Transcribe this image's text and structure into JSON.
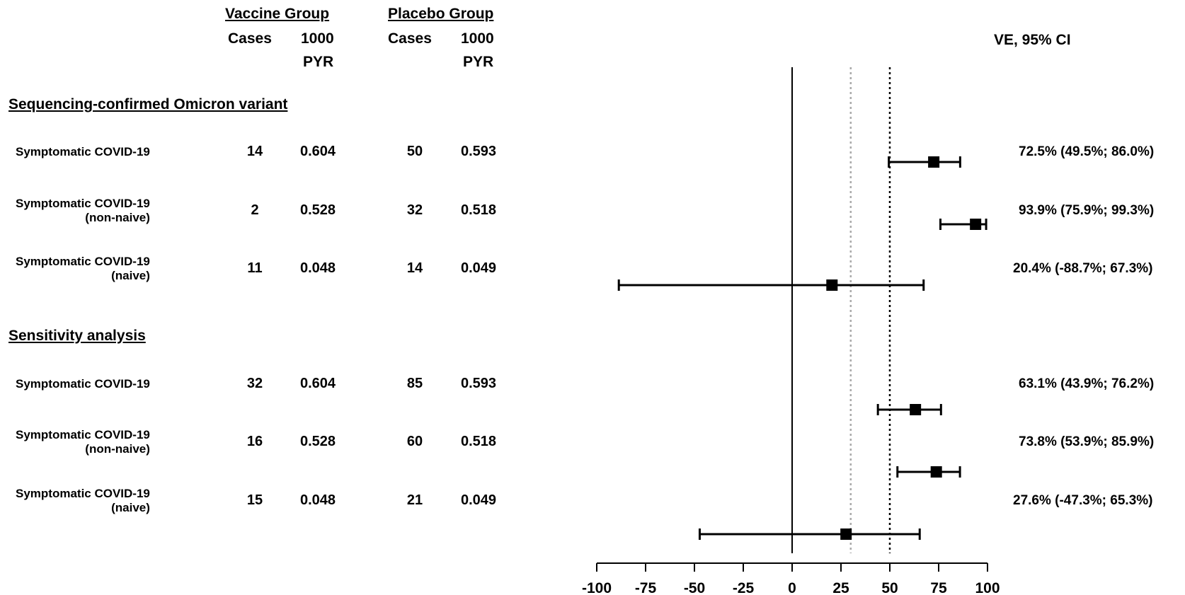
{
  "header": {
    "vaccine_group": "Vaccine Group",
    "placebo_group": "Placebo Group",
    "cases": "Cases",
    "pyr_line1": "1000",
    "pyr_line2": "PYR",
    "ve_ci": "VE, 95% CI"
  },
  "sections": [
    {
      "title": "Sequencing-confirmed Omicron variant",
      "rows": [
        {
          "label": "Symptomatic COVID-19",
          "sublabel": "",
          "vaccine_cases": "14",
          "vaccine_pyr": "0.604",
          "placebo_cases": "50",
          "placebo_pyr": "0.593",
          "ve_text": "72.5% (49.5%; 86.0%)"
        },
        {
          "label": "Symptomatic COVID-19",
          "sublabel": "(non-naive)",
          "vaccine_cases": "2",
          "vaccine_pyr": "0.528",
          "placebo_cases": "32",
          "placebo_pyr": "0.518",
          "ve_text": "93.9% (75.9%; 99.3%)"
        },
        {
          "label": "Symptomatic COVID-19",
          "sublabel": "(naive)",
          "vaccine_cases": "11",
          "vaccine_pyr": "0.048",
          "placebo_cases": "14",
          "placebo_pyr": "0.049",
          "ve_text": "20.4% (-88.7%; 67.3%)"
        }
      ]
    },
    {
      "title": "Sensitivity analysis",
      "rows": [
        {
          "label": "Symptomatic COVID-19",
          "sublabel": "",
          "vaccine_cases": "32",
          "vaccine_pyr": "0.604",
          "placebo_cases": "85",
          "placebo_pyr": "0.593",
          "ve_text": "63.1% (43.9%; 76.2%)"
        },
        {
          "label": "Symptomatic COVID-19",
          "sublabel": "(non-naive)",
          "vaccine_cases": "16",
          "vaccine_pyr": "0.528",
          "placebo_cases": "60",
          "placebo_pyr": "0.518",
          "ve_text": "73.8% (53.9%; 85.9%)"
        },
        {
          "label": "Symptomatic COVID-19",
          "sublabel": "(naive)",
          "vaccine_cases": "15",
          "vaccine_pyr": "0.048",
          "placebo_cases": "21",
          "placebo_pyr": "0.049",
          "ve_text": "27.6% (-47.3%; 65.3%)"
        }
      ]
    }
  ],
  "chart_data": {
    "type": "forest",
    "title": "",
    "xlabel": "",
    "ylabel": "",
    "xlim": [
      -100,
      100
    ],
    "xticks": [
      -100,
      -75,
      -50,
      -25,
      0,
      25,
      50,
      75,
      100
    ],
    "reference_lines": [
      {
        "x": 0,
        "style": "solid",
        "color": "#000000"
      },
      {
        "x": 30,
        "style": "dotted",
        "color": "#aaaaaa"
      },
      {
        "x": 50,
        "style": "dotted",
        "color": "#000000"
      }
    ],
    "points": [
      {
        "label": "Sequencing-confirmed Omicron variant: Symptomatic COVID-19",
        "ve": 72.5,
        "lower": 49.5,
        "upper": 86.0
      },
      {
        "label": "Sequencing-confirmed Omicron variant: Symptomatic COVID-19 (non-naive)",
        "ve": 93.9,
        "lower": 75.9,
        "upper": 99.3
      },
      {
        "label": "Sequencing-confirmed Omicron variant: Symptomatic COVID-19 (naive)",
        "ve": 20.4,
        "lower": -88.7,
        "upper": 67.3
      },
      {
        "label": "Sensitivity analysis: Symptomatic COVID-19",
        "ve": 63.1,
        "lower": 43.9,
        "upper": 76.2
      },
      {
        "label": "Sensitivity analysis: Symptomatic COVID-19 (non-naive)",
        "ve": 73.8,
        "lower": 53.9,
        "upper": 85.9
      },
      {
        "label": "Sensitivity analysis: Symptomatic COVID-19 (naive)",
        "ve": 27.6,
        "lower": -47.3,
        "upper": 65.3
      }
    ],
    "grid": false
  }
}
